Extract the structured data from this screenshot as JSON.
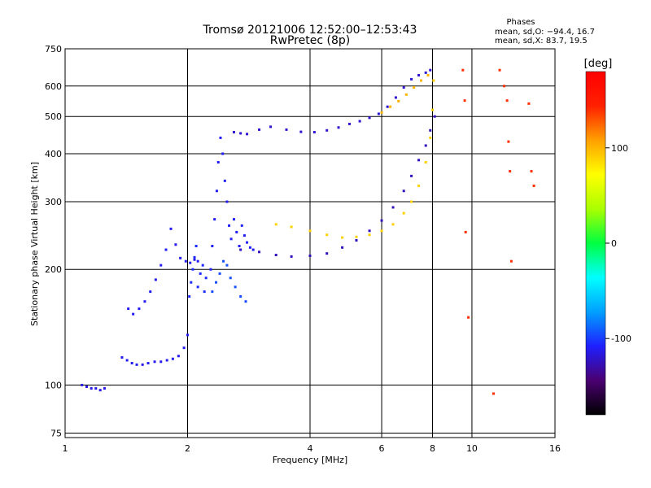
{
  "chart_data": {
    "type": "scatter",
    "title_line1": "Tromsø 20121006 12:52:00–12:53:43",
    "title_line2": "RwPretec (8p)",
    "xlabel": "Frequency [MHz]",
    "ylabel": "Stationary phase Virtual Height [km]",
    "x_scale": "log",
    "y_scale": "log",
    "xlim": [
      1,
      16
    ],
    "ylim": [
      73,
      750
    ],
    "x_ticks": [
      {
        "value": 1,
        "label": "1"
      },
      {
        "value": 2,
        "label": "2"
      },
      {
        "value": 4,
        "label": "4"
      },
      {
        "value": 6,
        "label": "6"
      },
      {
        "value": 8,
        "label": "8"
      },
      {
        "value": 10,
        "label": "10"
      },
      {
        "value": 16,
        "label": "16"
      }
    ],
    "y_ticks": [
      {
        "value": 75,
        "label": "75"
      },
      {
        "value": 100,
        "label": "100"
      },
      {
        "value": 200,
        "label": "200"
      },
      {
        "value": 300,
        "label": "300"
      },
      {
        "value": 400,
        "label": "400"
      },
      {
        "value": 500,
        "label": "500"
      },
      {
        "value": 600,
        "label": "600"
      },
      {
        "value": 750,
        "label": "750"
      }
    ],
    "grid": true,
    "stats": {
      "heading": "Phases",
      "line_o": "mean, sd,O: −94.4, 16.7",
      "line_x": "mean, sd,X:  83.7, 19.5"
    },
    "colorbar": {
      "label": "[deg]",
      "min": -180,
      "max": 180,
      "ticks": [
        {
          "value": 100,
          "label": "100"
        },
        {
          "value": 0,
          "label": "0"
        },
        {
          "value": -100,
          "label": "-100"
        }
      ],
      "colormap": [
        "#000000",
        "#4a0070",
        "#1f1fff",
        "#00a0ff",
        "#00ffff",
        "#00ff40",
        "#aaff00",
        "#ffff00",
        "#ffa000",
        "#ff2000",
        "#ff0000"
      ]
    },
    "series": [
      {
        "x": [
          1.1,
          1.13,
          1.16,
          1.19,
          1.22,
          1.25
        ],
        "y": [
          100,
          99,
          98,
          98,
          97,
          98
        ],
        "phase": -115
      },
      {
        "x": [
          1.38,
          1.42,
          1.46,
          1.5,
          1.55,
          1.6,
          1.66,
          1.72,
          1.78,
          1.84,
          1.9,
          1.96,
          2.0
        ],
        "y": [
          118,
          116,
          114,
          113,
          113,
          114,
          115,
          115,
          116,
          117,
          119,
          125,
          135
        ],
        "phase": -112
      },
      {
        "x": [
          1.43,
          1.47,
          1.52,
          1.57,
          1.62,
          1.67,
          1.72,
          1.77,
          1.82,
          1.87,
          1.92,
          1.98,
          2.03,
          2.08,
          2.12
        ],
        "y": [
          158,
          153,
          158,
          165,
          175,
          188,
          205,
          225,
          255,
          232,
          214,
          210,
          208,
          212,
          210
        ],
        "phase": -112
      },
      {
        "x": [
          2.02,
          2.04,
          2.06,
          2.08,
          2.1,
          2.12,
          2.15,
          2.18,
          2.2,
          2.22
        ],
        "y": [
          170,
          185,
          200,
          215,
          230,
          180,
          195,
          205,
          175,
          190
        ],
        "phase": -105
      },
      {
        "x": [
          2.28,
          2.3,
          2.33,
          2.36,
          2.38,
          2.41,
          2.44,
          2.47,
          2.5,
          2.53,
          2.56,
          2.6,
          2.64,
          2.68,
          2.72,
          2.76,
          2.8,
          2.85,
          2.9
        ],
        "y": [
          200,
          230,
          270,
          320,
          380,
          440,
          400,
          340,
          300,
          260,
          240,
          270,
          250,
          230,
          260,
          245,
          235,
          228,
          225
        ],
        "phase": -110
      },
      {
        "x": [
          2.3,
          2.35,
          2.4,
          2.45,
          2.5,
          2.55,
          2.62,
          2.7,
          2.78
        ],
        "y": [
          175,
          185,
          195,
          210,
          205,
          190,
          180,
          170,
          165
        ],
        "phase": -95
      },
      {
        "x": [
          2.6,
          2.7,
          2.8,
          3.0,
          3.2,
          3.5,
          3.8,
          4.1,
          4.4,
          4.7,
          5.0,
          5.3,
          5.6,
          5.9,
          6.2,
          6.5,
          6.8,
          7.1,
          7.4,
          7.7,
          7.9
        ],
        "y": [
          455,
          452,
          450,
          462,
          470,
          462,
          456,
          455,
          460,
          468,
          478,
          486,
          496,
          508,
          530,
          560,
          595,
          625,
          640,
          650,
          660
        ],
        "phase": -120
      },
      {
        "x": [
          2.7,
          3.0,
          3.3,
          3.6,
          4.0,
          4.4,
          4.8,
          5.2,
          5.6,
          6.0,
          6.4,
          6.8,
          7.1,
          7.4,
          7.7,
          7.9,
          8.1
        ],
        "y": [
          225,
          222,
          218,
          216,
          217,
          220,
          228,
          238,
          252,
          268,
          290,
          320,
          350,
          385,
          420,
          460,
          500
        ],
        "phase": -125
      },
      {
        "x": [
          3.3,
          3.6,
          4.0,
          4.4,
          4.8,
          5.2,
          5.6,
          6.0,
          6.4,
          6.8,
          7.1,
          7.4,
          7.7,
          7.9,
          8.0,
          8.05
        ],
        "y": [
          262,
          258,
          252,
          246,
          242,
          243,
          246,
          252,
          262,
          280,
          300,
          330,
          380,
          440,
          520,
          620
        ],
        "phase": 90
      },
      {
        "x": [
          6.0,
          6.3,
          6.6,
          6.9,
          7.2,
          7.5,
          7.8
        ],
        "y": [
          512,
          530,
          548,
          570,
          595,
          620,
          640
        ],
        "phase": 100
      },
      {
        "x": [
          9.5,
          9.6,
          9.65,
          11.7,
          12.0,
          12.2,
          12.3,
          12.4,
          13.8,
          14.0,
          14.2,
          12.5,
          11.3,
          9.8
        ],
        "y": [
          660,
          550,
          250,
          660,
          600,
          550,
          430,
          360,
          540,
          360,
          330,
          210,
          95,
          150
        ],
        "phase": 140
      }
    ]
  }
}
